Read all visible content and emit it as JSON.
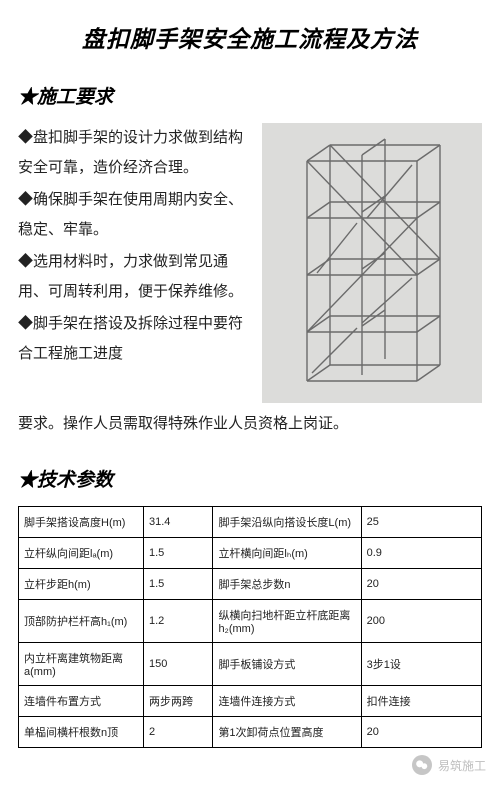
{
  "title": "盘扣脚手架安全施工流程及方法",
  "section1": {
    "heading": "★施工要求",
    "bullets": [
      "◆盘扣脚手架的设计力求做到结构安全可靠，造价经济合理。",
      "◆确保脚手架在使用周期内安全、稳定、牢靠。",
      "◆选用材料时，力求做到常见通用、可周转利用，便于保养维修。",
      "◆脚手架在搭设及拆除过程中要符合工程施工进度"
    ],
    "continued": "要求。操作人员需取得特殊作业人员资格上岗证。"
  },
  "section2": {
    "heading": "★技术参数",
    "rows": [
      [
        "脚手架搭设高度H(m)",
        "31.4",
        "脚手架沿纵向搭设长度L(m)",
        "25"
      ],
      [
        "立杆纵向间距lₐ(m)",
        "1.5",
        "立杆横向间距lₕ(m)",
        "0.9"
      ],
      [
        "立杆步距h(m)",
        "1.5",
        "脚手架总步数n",
        "20"
      ],
      [
        "顶部防护栏杆高h₁(m)",
        "1.2",
        "纵横向扫地杆距立杆底距离h₂(mm)",
        "200"
      ],
      [
        "内立杆离建筑物距离a(mm)",
        "150",
        "脚手板铺设方式",
        "3步1设"
      ],
      [
        "连墙件布置方式",
        "两步两跨",
        "连墙件连接方式",
        "扣件连接"
      ],
      [
        "单榀间横杆根数n顶",
        "2",
        "第1次卸荷点位置高度",
        "20"
      ]
    ]
  },
  "watermark": "易筑施工",
  "image": {
    "bg": "#dcdcda",
    "line": "#6e6e6e"
  }
}
